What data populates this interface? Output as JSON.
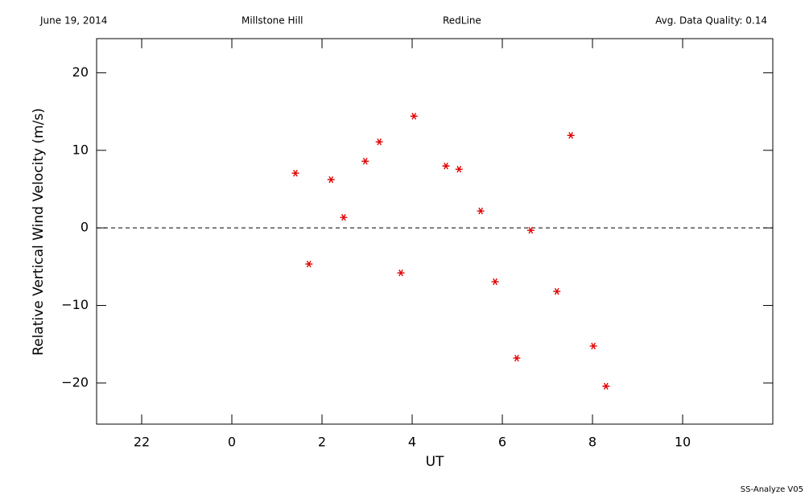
{
  "chart_data": {
    "type": "scatter",
    "header": [
      "June 19, 2014",
      "Millstone Hill",
      "RedLine",
      "Avg. Data Quality: 0.14"
    ],
    "footer": "SS-Analyze V05",
    "x_label": "UT",
    "y_label": "Relative Vertical Wind Velocity (m/s)",
    "xlim": [
      -3,
      12
    ],
    "ylim": [
      -25.3,
      24.4
    ],
    "xticks": [
      {
        "value": -2,
        "label": "22"
      },
      0,
      2,
      4,
      6,
      8,
      10
    ],
    "yticks": [
      {
        "value": -20,
        "label": "−20"
      },
      {
        "value": -10,
        "label": "−10"
      },
      0,
      10,
      20
    ],
    "reference_line": 0,
    "series": [
      {
        "color": "#e00000",
        "x": [
          1.41,
          1.71,
          2.2,
          2.48,
          2.96,
          3.27,
          3.75,
          4.04,
          4.75,
          5.04,
          5.52,
          5.84,
          6.32,
          6.63,
          7.21,
          7.52,
          8.02,
          8.3
        ],
        "values": [
          7.05,
          -4.66,
          6.22,
          1.35,
          8.6,
          11.09,
          -5.8,
          14.4,
          7.98,
          7.56,
          2.18,
          -6.94,
          -16.79,
          -0.31,
          -8.19,
          11.92,
          -15.23,
          -20.41
        ]
      }
    ]
  }
}
